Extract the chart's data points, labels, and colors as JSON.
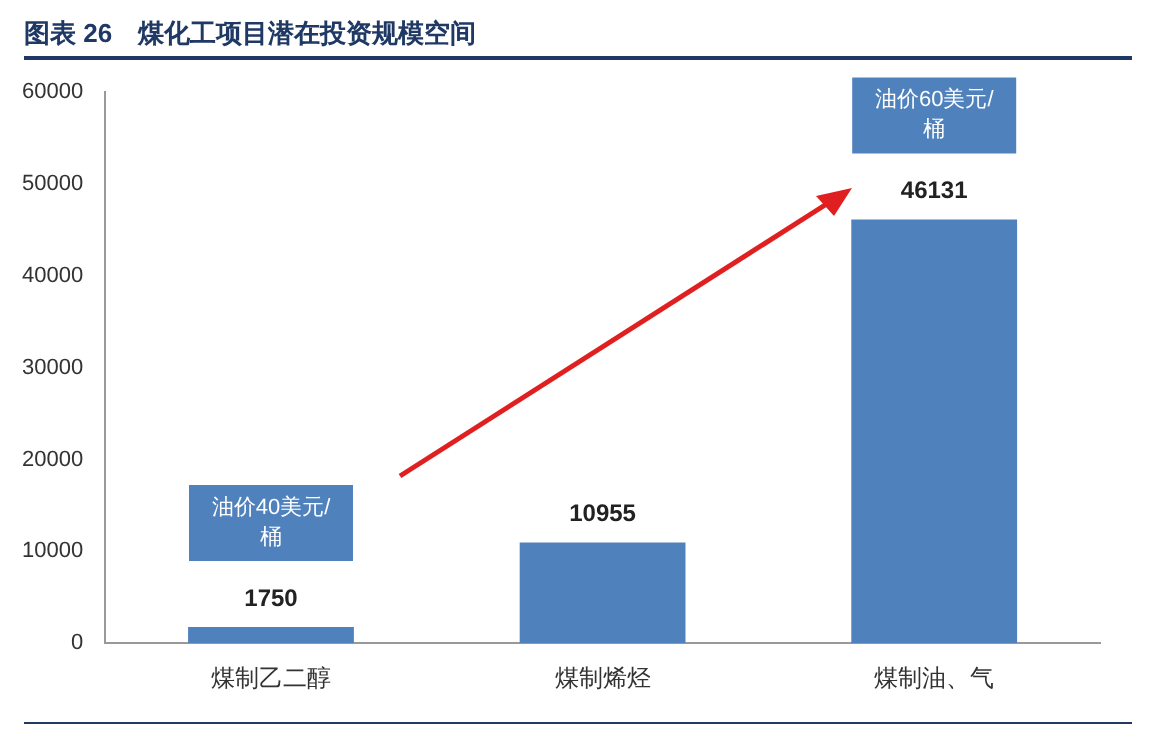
{
  "chart_data": {
    "type": "bar",
    "title": "图表 26　煤化工项目潜在投资规模空间",
    "categories": [
      "煤制乙二醇",
      "煤制烯烃",
      "煤制油、气"
    ],
    "values": [
      1750,
      10955,
      46131
    ],
    "color": "#4f81bd",
    "ylim": [
      0,
      60000
    ],
    "yticks": [
      0,
      10000,
      20000,
      30000,
      40000,
      50000,
      60000
    ],
    "grid": false,
    "legend": false,
    "data_labels": true,
    "annotations": [
      "油价40美元/桶",
      "油价60美元/桶"
    ]
  }
}
